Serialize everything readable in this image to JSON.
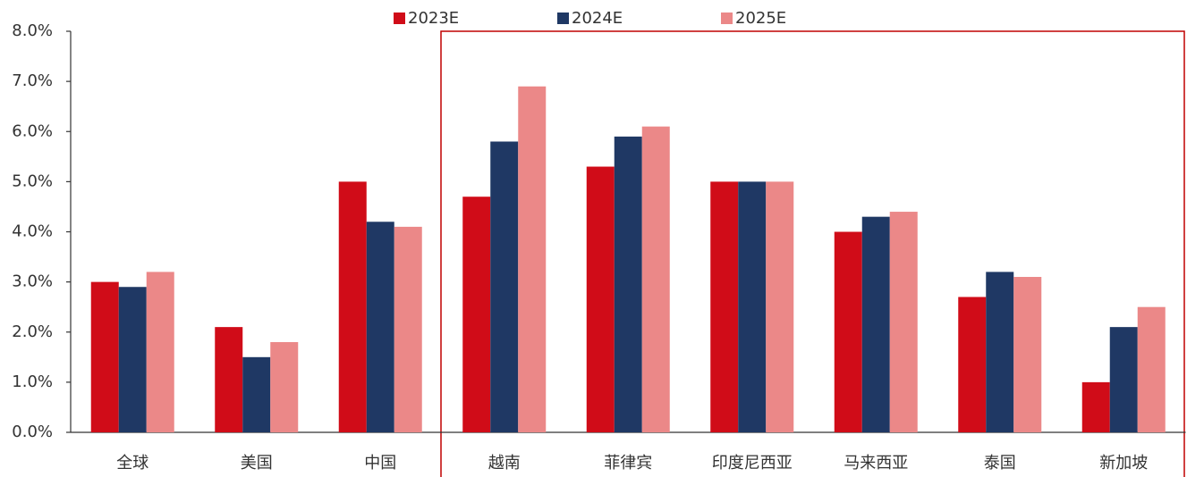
{
  "chart_data": {
    "type": "bar",
    "categories": [
      "全球",
      "美国",
      "中国",
      "越南",
      "菲律宾",
      "印度尼西亚",
      "马来西亚",
      "泰国",
      "新加坡"
    ],
    "series": [
      {
        "name": "2023E",
        "color": "#d00c18",
        "values": [
          3.0,
          2.1,
          5.0,
          4.7,
          5.3,
          5.0,
          4.0,
          2.7,
          1.0
        ]
      },
      {
        "name": "2024E",
        "color": "#1f3864",
        "values": [
          2.9,
          1.5,
          4.2,
          5.8,
          5.9,
          5.0,
          4.3,
          3.2,
          2.1
        ]
      },
      {
        "name": "2025E",
        "color": "#eb8888",
        "values": [
          3.2,
          1.8,
          4.1,
          6.9,
          6.1,
          5.0,
          4.4,
          3.1,
          2.5
        ]
      }
    ],
    "ylim": [
      0,
      8
    ],
    "yticks": [
      {
        "value": 0,
        "label": "0.0%"
      },
      {
        "value": 1,
        "label": "1.0%"
      },
      {
        "value": 2,
        "label": "2.0%"
      },
      {
        "value": 3,
        "label": "3.0%"
      },
      {
        "value": 4,
        "label": "4.0%"
      },
      {
        "value": 5,
        "label": "5.0%"
      },
      {
        "value": 6,
        "label": "6.0%"
      },
      {
        "value": 7,
        "label": "7.0%"
      },
      {
        "value": 8,
        "label": "8.0%"
      }
    ],
    "legend": "top"
  }
}
